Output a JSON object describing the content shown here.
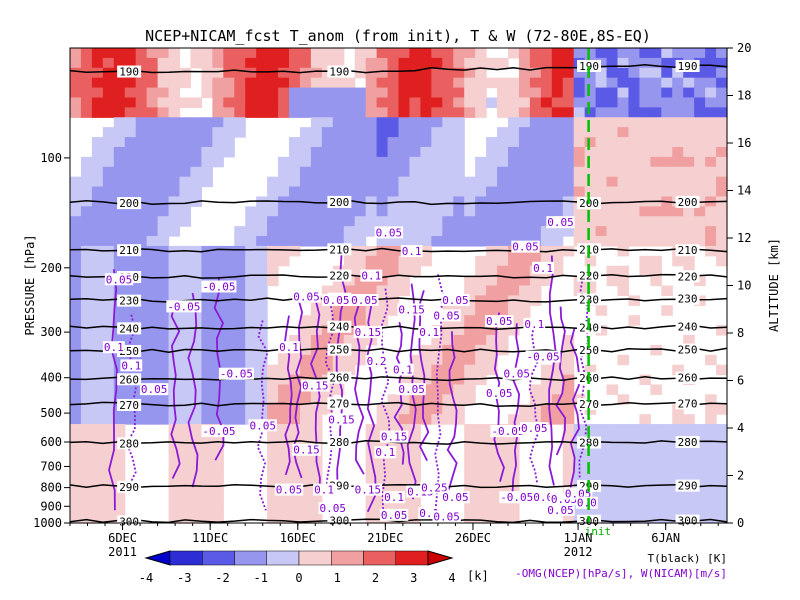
{
  "chart_data": {
    "type": "heatmap",
    "title": "NCEP+NICAM_fcst T_anom (from init), T & W  (72-80E,8S-EQ)",
    "ylabel": "PRESSURE [hPa]",
    "y2label": "ALTITUDE [km]",
    "init_label": "init",
    "x_ticks": [
      {
        "day": 6,
        "label": "6DEC",
        "sub": "2011"
      },
      {
        "day": 11,
        "label": "11DEC",
        "sub": ""
      },
      {
        "day": 16,
        "label": "16DEC",
        "sub": ""
      },
      {
        "day": 21,
        "label": "21DEC",
        "sub": ""
      },
      {
        "day": 26,
        "label": "26DEC",
        "sub": ""
      },
      {
        "day": 32,
        "label": "1JAN",
        "sub": "2012"
      },
      {
        "day": 37,
        "label": "6JAN",
        "sub": ""
      }
    ],
    "x_range": [
      3.0,
      40.5
    ],
    "init_day": 32.6,
    "pressure_ticks": [
      100,
      200,
      300,
      400,
      500,
      600,
      700,
      800,
      900,
      1000
    ],
    "pressure_range": [
      1000,
      50
    ],
    "altitude_ticks": [
      0,
      2,
      4,
      6,
      8,
      10,
      12,
      14,
      16,
      18,
      20
    ],
    "altitude_range": [
      0,
      20
    ],
    "colorbar": {
      "ticks": [
        "-4",
        "-3",
        "-2",
        "-1",
        "0",
        "1",
        "2",
        "3",
        "4"
      ],
      "unit": "[k]",
      "colors": [
        "#2d2dd6",
        "#5a5ae6",
        "#9696ee",
        "#c8c8f6",
        "#f6d0d0",
        "#f0a0a0",
        "#ea6060",
        "#e02020"
      ]
    },
    "legend": {
      "t_label": "T(black) [K]",
      "w_label": "-OMG(NCEP)[hPa/s], W(NICAM)[m/s]"
    },
    "t_contours": [
      {
        "label": "190",
        "p": [
          58,
          58,
          58,
          58,
          57,
          57,
          56,
          56
        ]
      },
      {
        "label": "200",
        "p": [
          132,
          133,
          131,
          132,
          133,
          132,
          133,
          132
        ]
      },
      {
        "label": "210",
        "p": [
          178,
          179,
          180,
          178,
          179,
          180,
          178,
          179
        ]
      },
      {
        "label": "220",
        "p": [
          210,
          212,
          211,
          210,
          212,
          211,
          210,
          211
        ]
      },
      {
        "label": "230",
        "p": [
          243,
          246,
          244,
          243,
          245,
          246,
          244,
          243
        ]
      },
      {
        "label": "240",
        "p": [
          290,
          293,
          291,
          290,
          292,
          293,
          291,
          290
        ]
      },
      {
        "label": "250",
        "p": [
          335,
          338,
          336,
          335,
          337,
          338,
          336,
          335
        ]
      },
      {
        "label": "260",
        "p": [
          400,
          404,
          401,
          400,
          403,
          404,
          401,
          400
        ]
      },
      {
        "label": "270",
        "p": [
          470,
          475,
          472,
          470,
          474,
          475,
          472,
          470
        ]
      },
      {
        "label": "280",
        "p": [
          600,
          605,
          602,
          600,
          604,
          605,
          602,
          600
        ]
      },
      {
        "label": "290",
        "p": [
          790,
          796,
          792,
          790,
          794,
          796,
          792,
          790
        ]
      },
      {
        "label": "300",
        "p": [
          985,
          990,
          986,
          985,
          988,
          990,
          986,
          985
        ]
      }
    ],
    "w_labels": [
      {
        "day": 5.8,
        "p": 215,
        "label": "0.05"
      },
      {
        "day": 9.5,
        "p": 255,
        "label": "-0.05"
      },
      {
        "day": 11.5,
        "p": 225,
        "label": "-0.05"
      },
      {
        "day": 5.5,
        "p": 330,
        "label": "0.1"
      },
      {
        "day": 6.5,
        "p": 370,
        "label": "0.1"
      },
      {
        "day": 7.8,
        "p": 430,
        "label": "0.05"
      },
      {
        "day": 12.5,
        "p": 390,
        "label": "-0.05"
      },
      {
        "day": 11.5,
        "p": 560,
        "label": "-0.05"
      },
      {
        "day": 14.0,
        "p": 540,
        "label": "0.05"
      },
      {
        "day": 15.5,
        "p": 330,
        "label": "0.1"
      },
      {
        "day": 16.5,
        "p": 240,
        "label": "0.05"
      },
      {
        "day": 18.2,
        "p": 245,
        "label": "0.05"
      },
      {
        "day": 19.8,
        "p": 245,
        "label": "0.05"
      },
      {
        "day": 20.2,
        "p": 210,
        "label": "0.1"
      },
      {
        "day": 21.2,
        "p": 160,
        "label": "0.05"
      },
      {
        "day": 22.5,
        "p": 180,
        "label": "0.1"
      },
      {
        "day": 20.0,
        "p": 300,
        "label": "0.15"
      },
      {
        "day": 22.5,
        "p": 260,
        "label": "0.15"
      },
      {
        "day": 23.5,
        "p": 300,
        "label": "0.1"
      },
      {
        "day": 24.5,
        "p": 270,
        "label": "0.05"
      },
      {
        "day": 25.0,
        "p": 245,
        "label": "0.05"
      },
      {
        "day": 20.5,
        "p": 360,
        "label": "0.2"
      },
      {
        "day": 22.0,
        "p": 380,
        "label": "0.1"
      },
      {
        "day": 17.0,
        "p": 420,
        "label": "0.15"
      },
      {
        "day": 16.5,
        "p": 630,
        "label": "0.15"
      },
      {
        "day": 18.5,
        "p": 520,
        "label": "0.15"
      },
      {
        "day": 21.5,
        "p": 580,
        "label": "0.15"
      },
      {
        "day": 21.0,
        "p": 640,
        "label": "0.1"
      },
      {
        "day": 22.5,
        "p": 430,
        "label": "0.05"
      },
      {
        "day": 15.5,
        "p": 810,
        "label": "0.05"
      },
      {
        "day": 17.5,
        "p": 810,
        "label": "0.1"
      },
      {
        "day": 20.0,
        "p": 810,
        "label": "0.15"
      },
      {
        "day": 21.5,
        "p": 850,
        "label": "0.1"
      },
      {
        "day": 23.0,
        "p": 820,
        "label": "0.15"
      },
      {
        "day": 23.8,
        "p": 800,
        "label": "0.25"
      },
      {
        "day": 25.0,
        "p": 850,
        "label": "0.05"
      },
      {
        "day": 18.0,
        "p": 910,
        "label": "0.05"
      },
      {
        "day": 21.5,
        "p": 950,
        "label": "0.05"
      },
      {
        "day": 23.5,
        "p": 940,
        "label": "0.1"
      },
      {
        "day": 24.5,
        "p": 960,
        "label": "0.05"
      },
      {
        "day": 27.5,
        "p": 280,
        "label": "0.05"
      },
      {
        "day": 29.5,
        "p": 285,
        "label": "0.1"
      },
      {
        "day": 28.5,
        "p": 390,
        "label": "0.05"
      },
      {
        "day": 30.0,
        "p": 350,
        "label": "-0.05"
      },
      {
        "day": 28.0,
        "p": 560,
        "label": "-0.05"
      },
      {
        "day": 29.5,
        "p": 550,
        "label": "0.05"
      },
      {
        "day": 27.5,
        "p": 440,
        "label": "0.05"
      },
      {
        "day": 29.0,
        "p": 175,
        "label": "0.05"
      },
      {
        "day": 30.0,
        "p": 200,
        "label": "0.1"
      },
      {
        "day": 31.0,
        "p": 150,
        "label": "0.05"
      },
      {
        "day": 28.5,
        "p": 850,
        "label": "-0.05"
      },
      {
        "day": 30.2,
        "p": 850,
        "label": "0.05"
      },
      {
        "day": 31.2,
        "p": 860,
        "label": "0.05"
      },
      {
        "day": 32.0,
        "p": 830,
        "label": "0.05"
      },
      {
        "day": 32.5,
        "p": 880,
        "label": "0.0"
      },
      {
        "day": 31.0,
        "p": 920,
        "label": "0.05"
      }
    ]
  }
}
